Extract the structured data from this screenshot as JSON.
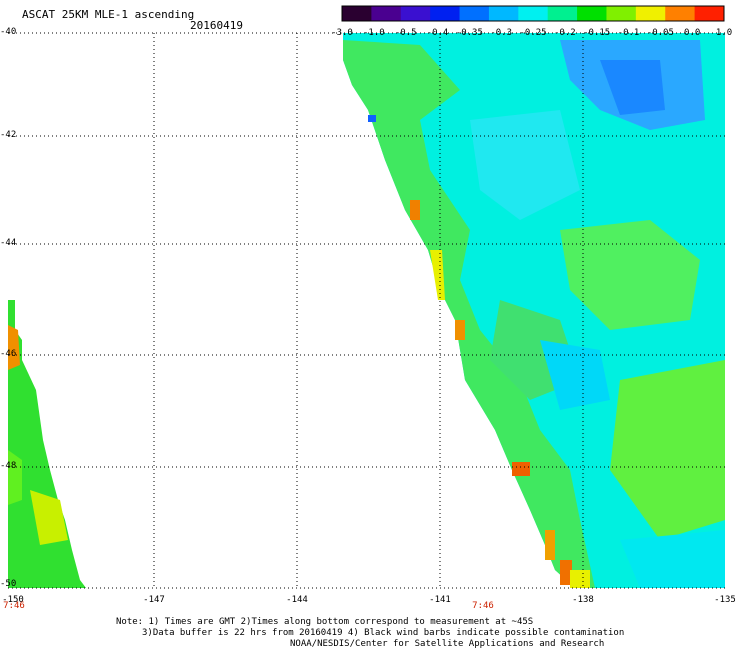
{
  "title": "ASCAT 25KM MLE-1 ascending",
  "date": "20160419",
  "colorbar": {
    "labels": [
      "-3.0",
      "-1.0",
      "-0.5",
      "-0.4",
      "-0.35",
      "-0.3",
      "-0.25",
      "-0.2",
      "-0.15",
      "-0.1",
      "-0.05",
      "0.0",
      "1.0"
    ],
    "colors": [
      "#2a0030",
      "#4a0090",
      "#3a10d0",
      "#0020f0",
      "#0070ff",
      "#00b8ff",
      "#00f0f0",
      "#00f090",
      "#00e000",
      "#80f000",
      "#f0f000",
      "#ff8000",
      "#ff2000"
    ]
  },
  "axes": {
    "lat_labels": [
      "-40",
      "-42",
      "-44",
      "-46",
      "-48",
      "-50"
    ],
    "lon_labels": [
      "-150",
      "-147",
      "-144",
      "-141",
      "-138",
      "-135"
    ],
    "time_labels": [
      "7:46",
      "7:46"
    ]
  },
  "notes": [
    "Note: 1) Times are GMT 2)Times along bottom correspond to measurement at ~45S",
    "3)Data buffer is 22 hrs from 20160419 4) Black wind barbs indicate possible contamination",
    "NOAA/NESDIS/Center for Satellite Applications and Research"
  ]
}
